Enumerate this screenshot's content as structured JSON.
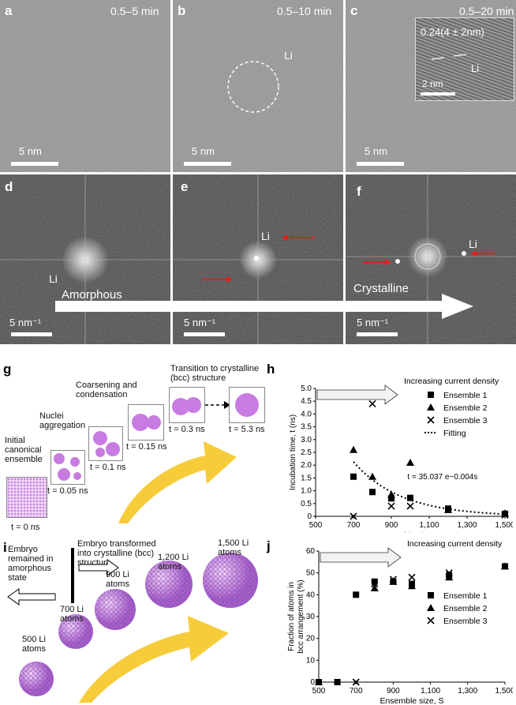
{
  "panels_top": {
    "a": {
      "label": "a",
      "time": "0.5–5 min",
      "scale": "5 nm"
    },
    "b": {
      "label": "b",
      "time": "0.5–10 min",
      "scale": "5 nm",
      "li": "Li"
    },
    "c": {
      "label": "c",
      "time": "0.5–20 min",
      "scale": "5 nm",
      "inset_title": "0.24(4 ± 2nm)",
      "inset_li": "Li",
      "inset_scale": "2 nm"
    }
  },
  "panels_fft": {
    "d": {
      "label": "d",
      "li": "Li",
      "scale": "5 nm⁻¹"
    },
    "e": {
      "label": "e",
      "li": "Li",
      "scale": "5 nm⁻¹"
    },
    "f": {
      "label": "f",
      "li": "Li",
      "scale": "5 nm⁻¹"
    },
    "arrow_left": "Amorphous",
    "arrow_right": "Crystalline"
  },
  "panel_g": {
    "label": "g",
    "stages": [
      {
        "title": "Initial canonical ensemble",
        "time": "t = 0 ns"
      },
      {
        "title": "Nuclei aggregation",
        "time": "t = 0.05 ns"
      },
      {
        "title": "",
        "time": "t = 0.1 ns"
      },
      {
        "title": "Coarsening and condensation",
        "time": "t = 0.15 ns"
      },
      {
        "title": "Transition to crystalline (bcc) structure",
        "time": "t = 0.3 ns"
      },
      {
        "title": "",
        "time": "t = 5.3 ns"
      }
    ]
  },
  "panel_i": {
    "label": "i",
    "left_text": "Embryo remained in amorphous state",
    "right_text": "Embryo transformed into crystalline (bcc) structure",
    "clusters": [
      "500 Li atoms",
      "700 Li atoms",
      "900 Li atoms",
      "1,200 Li atoms",
      "1,500 Li atoms"
    ]
  },
  "chart_data": [
    {
      "panel": "h",
      "type": "scatter",
      "banner": "Increasing current density",
      "xlabel": "Ensemble size, S",
      "ylabel": "Incubation time, t (ns)",
      "xlim": [
        500,
        1500
      ],
      "ylim": [
        0,
        5.0
      ],
      "x_ticks": [
        "500",
        "700",
        "900",
        "1,100",
        "1,300",
        "1,500"
      ],
      "y_ticks": [
        "0",
        "0.5",
        "1.0",
        "1.5",
        "2.0",
        "2.5",
        "3.0",
        "3.5",
        "4.0",
        "4.5",
        "5.0"
      ],
      "annotation": "t = 35.037 e−0.004s",
      "series": [
        {
          "name": "Ensemble 1",
          "marker": "square",
          "points": [
            [
              700,
              1.55
            ],
            [
              800,
              0.95
            ],
            [
              900,
              0.7
            ],
            [
              1000,
              0.72
            ],
            [
              1200,
              0.3
            ],
            [
              1500,
              0.1
            ]
          ]
        },
        {
          "name": "Ensemble 2",
          "marker": "triangle",
          "points": [
            [
              700,
              2.6
            ],
            [
              800,
              1.55
            ],
            [
              900,
              0.85
            ],
            [
              1000,
              2.1
            ],
            [
              1200,
              0.25
            ],
            [
              1500,
              0.12
            ]
          ]
        },
        {
          "name": "Ensemble 3",
          "marker": "x",
          "points": [
            [
              700,
              0.0
            ],
            [
              800,
              4.4
            ],
            [
              900,
              0.4
            ],
            [
              1000,
              0.4
            ],
            [
              1500,
              0.05
            ]
          ]
        },
        {
          "name": "Fitting",
          "marker": "dotted-line",
          "fit": {
            "a": 35.037,
            "b": -0.004
          }
        }
      ]
    },
    {
      "panel": "j",
      "type": "scatter",
      "banner": "Increasing current density",
      "xlabel": "Ensemble size, S",
      "ylabel": "Fraction of atoms in bcc arrangement (%)",
      "xlim": [
        500,
        1500
      ],
      "ylim": [
        0,
        60
      ],
      "x_ticks": [
        "500",
        "700",
        "900",
        "1,100",
        "1,300",
        "1,500"
      ],
      "y_ticks": [
        "0",
        "10",
        "20",
        "30",
        "40",
        "50",
        "60"
      ],
      "series": [
        {
          "name": "Ensemble 1",
          "marker": "square",
          "points": [
            [
              500,
              0
            ],
            [
              600,
              0
            ],
            [
              700,
              40
            ],
            [
              800,
              46
            ],
            [
              900,
              46
            ],
            [
              1000,
              45
            ],
            [
              1200,
              49
            ],
            [
              1500,
              53
            ]
          ]
        },
        {
          "name": "Ensemble 2",
          "marker": "triangle",
          "points": [
            [
              500,
              0
            ],
            [
              800,
              43
            ],
            [
              900,
              46
            ],
            [
              1000,
              44
            ],
            [
              1200,
              48
            ],
            [
              1500,
              53
            ]
          ]
        },
        {
          "name": "Ensemble 3",
          "marker": "x",
          "points": [
            [
              700,
              0
            ],
            [
              800,
              45
            ],
            [
              900,
              47
            ],
            [
              1000,
              48
            ],
            [
              1200,
              50
            ]
          ]
        }
      ]
    }
  ]
}
